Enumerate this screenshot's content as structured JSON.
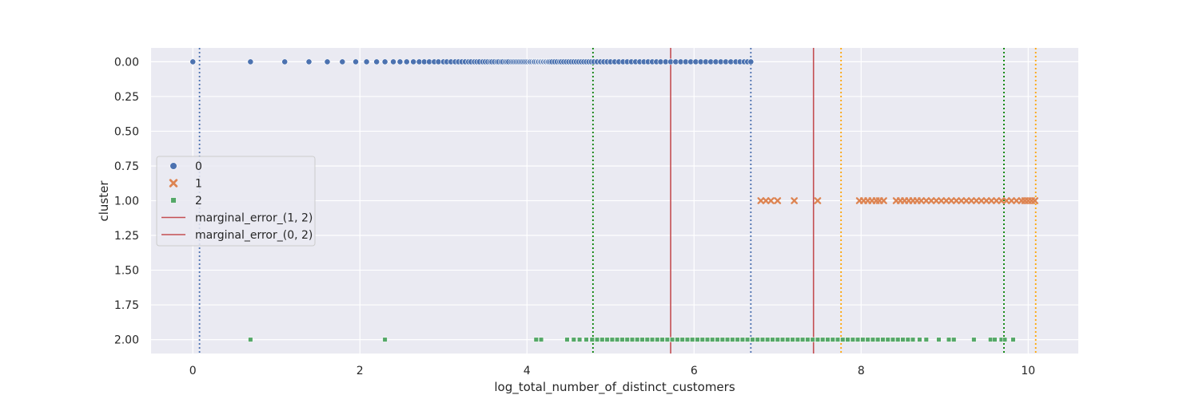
{
  "chart_data": {
    "type": "scatter",
    "title": "",
    "xlabel": "log_total_number_of_distinct_customers",
    "ylabel": "cluster",
    "xlim": [
      -0.5,
      10.6
    ],
    "ylim": [
      2.1,
      -0.1
    ],
    "y_inverted": true,
    "x_ticks": [
      0,
      2,
      4,
      6,
      8,
      10
    ],
    "x_tick_labels": [
      "0",
      "2",
      "4",
      "6",
      "8",
      "10"
    ],
    "y_ticks": [
      0,
      0.25,
      0.5,
      0.75,
      1.0,
      1.25,
      1.5,
      1.75,
      2.0
    ],
    "y_tick_labels": [
      "0.00",
      "0.25",
      "0.50",
      "0.75",
      "1.00",
      "1.25",
      "1.50",
      "1.75",
      "2.00"
    ],
    "grid": true,
    "legend_position": "center-left",
    "colors": {
      "series_0": "#4c72b0",
      "series_1": "#dd8452",
      "series_2": "#55a868",
      "marginal_error_line": "#c44e52",
      "dotted_blue": "#4c72b0",
      "dotted_green": "#008000",
      "dotted_orange": "#ffa500",
      "plot_background": "#eaeaf2"
    },
    "series": [
      {
        "name": "0",
        "marker": "circle",
        "y": 0,
        "x": [
          0.0,
          0.69,
          1.1,
          1.39,
          1.61,
          1.79,
          1.95,
          2.08,
          2.2,
          2.3,
          2.4,
          2.48,
          2.56,
          2.64,
          2.71,
          2.77,
          2.83,
          2.89,
          2.94,
          3.0,
          3.04,
          3.09,
          3.14,
          3.18,
          3.22,
          3.26,
          3.3,
          3.33,
          3.37,
          3.4,
          3.43,
          3.47,
          3.5,
          3.53,
          3.56,
          3.58,
          3.61,
          3.64,
          3.66,
          3.69,
          3.71,
          3.74,
          3.76,
          3.78,
          3.81,
          3.83,
          3.85,
          3.87,
          3.89,
          3.91,
          3.93,
          3.95,
          3.97,
          3.99,
          4.01,
          4.03,
          4.04,
          4.06,
          4.08,
          4.09,
          4.11,
          4.13,
          4.14,
          4.16,
          4.17,
          4.19,
          4.2,
          4.22,
          4.23,
          4.25,
          4.26,
          4.28,
          4.3,
          4.33,
          4.36,
          4.39,
          4.41,
          4.44,
          4.47,
          4.5,
          4.53,
          4.56,
          4.59,
          4.62,
          4.65,
          4.68,
          4.71,
          4.74,
          4.77,
          4.8,
          4.84,
          4.88,
          4.92,
          4.96,
          5.0,
          5.05,
          5.1,
          5.15,
          5.2,
          5.25,
          5.3,
          5.35,
          5.4,
          5.45,
          5.5,
          5.55,
          5.6,
          5.66,
          5.72,
          5.78,
          5.84,
          5.9,
          5.96,
          6.02,
          6.08,
          6.14,
          6.2,
          6.26,
          6.32,
          6.38,
          6.44,
          6.5,
          6.55,
          6.6,
          6.64,
          6.68
        ]
      },
      {
        "name": "1",
        "marker": "x",
        "y": 1,
        "x": [
          6.8,
          6.86,
          6.92,
          7.0,
          7.2,
          7.48,
          7.98,
          8.03,
          8.08,
          8.13,
          8.18,
          8.22,
          8.27,
          8.42,
          8.47,
          8.52,
          8.57,
          8.62,
          8.67,
          8.72,
          8.78,
          8.84,
          8.9,
          8.96,
          9.02,
          9.08,
          9.14,
          9.2,
          9.26,
          9.32,
          9.38,
          9.44,
          9.5,
          9.56,
          9.62,
          9.68,
          9.74,
          9.8,
          9.86,
          9.92,
          9.96,
          10.0,
          10.04,
          10.08
        ]
      },
      {
        "name": "2",
        "marker": "square",
        "y": 2,
        "x": [
          0.69,
          2.3,
          4.11,
          4.17,
          4.48,
          4.56,
          4.63,
          4.71,
          4.78,
          4.84,
          4.9,
          4.96,
          5.02,
          5.08,
          5.14,
          5.2,
          5.26,
          5.32,
          5.38,
          5.44,
          5.5,
          5.56,
          5.62,
          5.68,
          5.74,
          5.8,
          5.86,
          5.92,
          5.98,
          6.04,
          6.1,
          6.16,
          6.22,
          6.28,
          6.34,
          6.4,
          6.46,
          6.52,
          6.58,
          6.64,
          6.7,
          6.76,
          6.82,
          6.88,
          6.94,
          7.0,
          7.06,
          7.12,
          7.18,
          7.24,
          7.3,
          7.36,
          7.42,
          7.48,
          7.54,
          7.6,
          7.66,
          7.72,
          7.78,
          7.84,
          7.9,
          7.96,
          8.02,
          8.08,
          8.14,
          8.2,
          8.26,
          8.32,
          8.38,
          8.44,
          8.5,
          8.56,
          8.62,
          8.7,
          8.78,
          8.93,
          9.05,
          9.11,
          9.35,
          9.55,
          9.6,
          9.68,
          9.72,
          9.82
        ]
      }
    ],
    "reference_lines": [
      {
        "name": "marginal_error_(1, 2)",
        "x": 5.72,
        "style": "solid",
        "color": "#c44e52"
      },
      {
        "name": "marginal_error_(0, 2)",
        "x": 7.43,
        "style": "solid",
        "color": "#c44e52"
      },
      {
        "x": 0.08,
        "style": "dotted",
        "color": "#4c72b0"
      },
      {
        "x": 6.68,
        "style": "dotted",
        "color": "#4c72b0"
      },
      {
        "x": 4.79,
        "style": "dotted",
        "color": "#008000"
      },
      {
        "x": 9.71,
        "style": "dotted",
        "color": "#008000"
      },
      {
        "x": 7.76,
        "style": "dotted",
        "color": "#ffa500"
      },
      {
        "x": 10.09,
        "style": "dotted",
        "color": "#ffa500"
      }
    ],
    "legend": [
      {
        "label": "0",
        "kind": "circle",
        "color": "#4c72b0"
      },
      {
        "label": "1",
        "kind": "x",
        "color": "#dd8452"
      },
      {
        "label": "2",
        "kind": "square",
        "color": "#55a868"
      },
      {
        "label": "marginal_error_(1, 2)",
        "kind": "line",
        "color": "#c44e52"
      },
      {
        "label": "marginal_error_(0, 2)",
        "kind": "line",
        "color": "#c44e52"
      }
    ]
  }
}
